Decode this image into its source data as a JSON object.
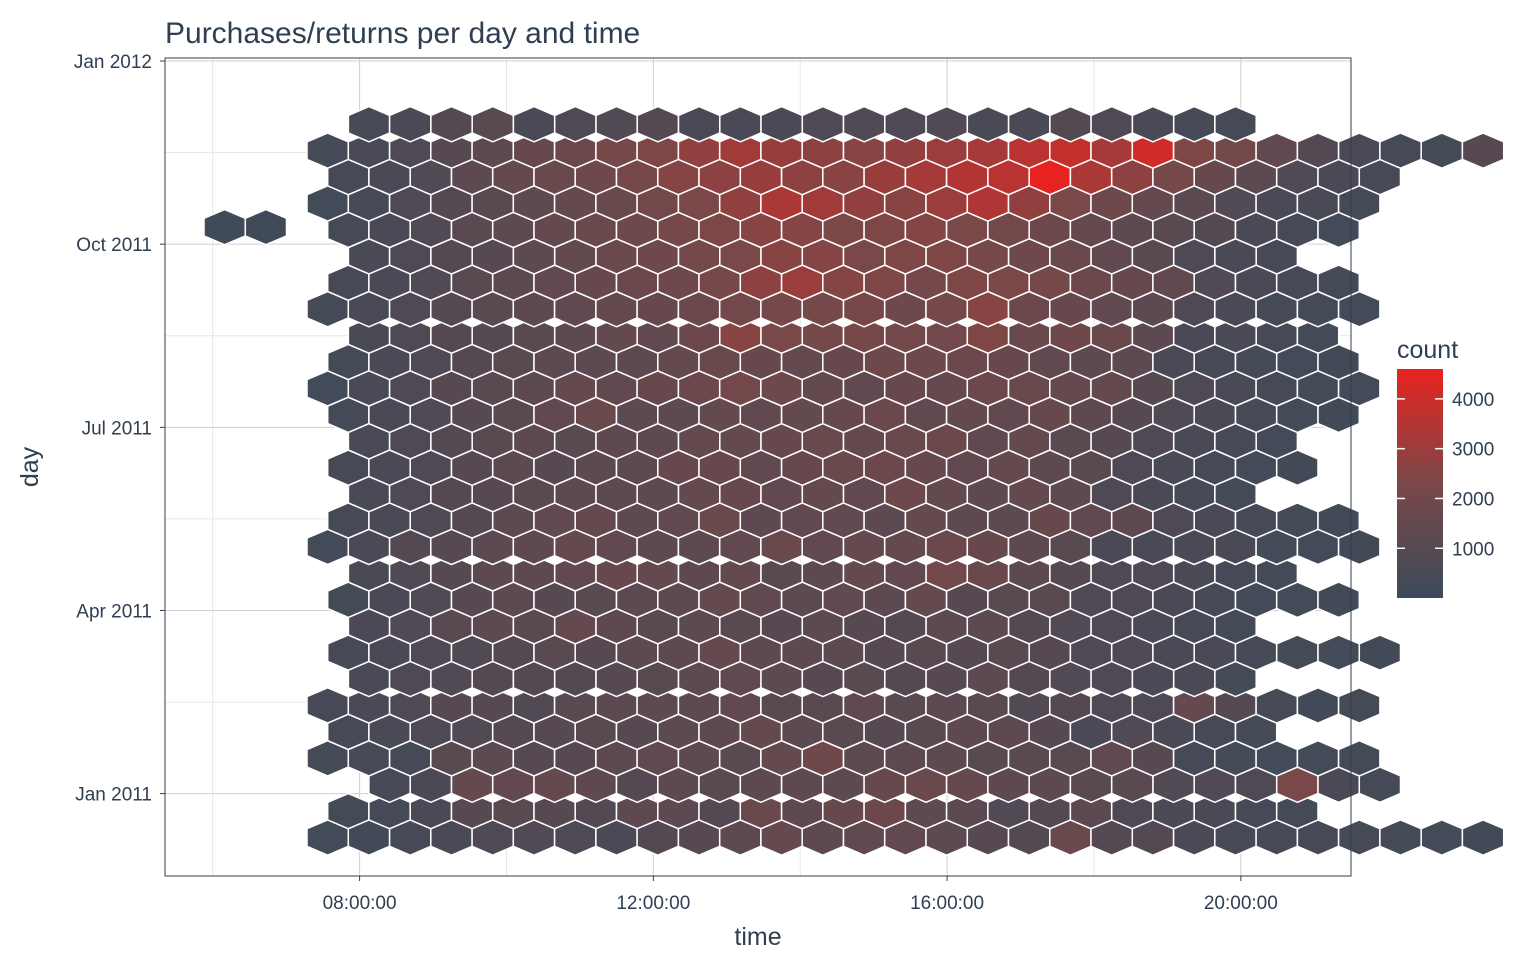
{
  "chart_data": {
    "type": "heatmap",
    "subtype": "hexbin",
    "title": "Purchases/returns per day and time",
    "xlabel": "time",
    "ylabel": "day",
    "x_ticks": [
      {
        "value": 8,
        "label": "08:00:00"
      },
      {
        "value": 12,
        "label": "12:00:00"
      },
      {
        "value": 16,
        "label": "16:00:00"
      },
      {
        "value": 20,
        "label": "20:00:00"
      }
    ],
    "y_ticks": [
      {
        "value": 0,
        "label": "Jan 2011"
      },
      {
        "value": 3,
        "label": "Apr 2011"
      },
      {
        "value": 6,
        "label": "Jul 2011"
      },
      {
        "value": 9,
        "label": "Oct 2011"
      },
      {
        "value": 12,
        "label": "Jan 2012"
      }
    ],
    "xlim": [
      5.35,
      21.5
    ],
    "ylim": [
      -1.35,
      12.05
    ],
    "units": {
      "x": "hour of day",
      "y": "months since Jan 2011"
    },
    "hex": {
      "dx": 0.5619,
      "dy": 0.4328
    },
    "legend": {
      "title": "count",
      "position": "right",
      "ticks": [
        1000,
        2000,
        3000,
        4000
      ],
      "range": [
        1,
        4600
      ],
      "color_low": "#3b4a5a",
      "color_high": "#e8231f"
    },
    "grid": true,
    "rows": [
      {
        "start": 7.565,
        "values": [
          300,
          250,
          400,
          500,
          700,
          800,
          700,
          600,
          900,
          1000,
          1300,
          1500,
          1300,
          1400,
          1400,
          1200,
          1000,
          900,
          1700,
          900,
          900,
          600,
          400,
          400,
          400,
          400,
          350,
          300,
          250
        ]
      },
      {
        "start": 7.846,
        "values": [
          350,
          400,
          600,
          1000,
          1100,
          1000,
          900,
          1300,
          1200,
          900,
          1700,
          1300,
          1600,
          1800,
          1300,
          1200,
          800,
          900,
          1200,
          700,
          600,
          600,
          400,
          350
        ]
      },
      {
        "start": 8.408,
        "values": [
          450,
          600,
          1500,
          1400,
          1500,
          1300,
          900,
          1200,
          1100,
          1200,
          1300,
          1200,
          1600,
          1700,
          1500,
          1300,
          1200,
          1100,
          1100,
          800,
          800,
          700,
          2300,
          600,
          350
        ]
      },
      {
        "start": 7.565,
        "values": [
          350,
          400,
          400,
          1100,
          1200,
          1000,
          1000,
          1300,
          1400,
          1300,
          1100,
          1500,
          1900,
          1300,
          1300,
          1300,
          1100,
          1100,
          1100,
          1400,
          1000,
          400,
          350,
          300,
          300,
          350
        ]
      },
      {
        "start": 7.846,
        "values": [
          400,
          500,
          700,
          800,
          900,
          1000,
          1100,
          1000,
          1200,
          1300,
          1500,
          1200,
          1100,
          1000,
          1100,
          1300,
          1300,
          1000,
          600,
          800,
          500,
          400,
          350
        ]
      },
      {
        "start": 7.565,
        "values": [
          450,
          550,
          700,
          1000,
          1000,
          800,
          1100,
          1200,
          1200,
          1300,
          1400,
          1100,
          1100,
          1400,
          1100,
          1200,
          1100,
          800,
          900,
          700,
          700,
          1500,
          900,
          400,
          250,
          350
        ]
      },
      {
        "start": 8.128,
        "values": [
          500,
          700,
          800,
          900,
          900,
          900,
          1000,
          1100,
          1200,
          1400,
          1200,
          1000,
          1100,
          900,
          1000,
          1200,
          900,
          800,
          700,
          600,
          500,
          350
        ]
      },
      {
        "start": 7.846,
        "values": [
          450,
          500,
          700,
          800,
          900,
          1100,
          1000,
          1200,
          1300,
          1500,
          1300,
          1300,
          1200,
          1000,
          1100,
          1000,
          1100,
          1000,
          700,
          700,
          600,
          500,
          400,
          350,
          300,
          250
        ]
      },
      {
        "start": 8.128,
        "values": [
          600,
          800,
          1100,
          1200,
          1100,
          1500,
          1300,
          1100,
          1200,
          1100,
          1000,
          1200,
          1000,
          900,
          1200,
          1200,
          900,
          800,
          700,
          500,
          400,
          350
        ]
      },
      {
        "start": 7.846,
        "values": [
          350,
          600,
          800,
          1000,
          1200,
          1000,
          1100,
          1200,
          1300,
          1500,
          1400,
          1200,
          1400,
          1200,
          1500,
          1000,
          1100,
          1100,
          800,
          700,
          600,
          400,
          300,
          300,
          250
        ]
      },
      {
        "start": 8.128,
        "values": [
          500,
          800,
          1000,
          1200,
          1300,
          1400,
          1600,
          1500,
          1300,
          1500,
          1100,
          1200,
          1500,
          1400,
          2000,
          1700,
          1200,
          1000,
          700,
          700,
          500,
          400,
          350
        ]
      },
      {
        "start": 7.565,
        "values": [
          300,
          600,
          900,
          1000,
          1200,
          1300,
          1500,
          1400,
          1300,
          1300,
          1400,
          1700,
          1400,
          1500,
          1500,
          1800,
          1600,
          1300,
          1100,
          600,
          500,
          500,
          500,
          300,
          300,
          250
        ]
      },
      {
        "start": 7.846,
        "values": [
          400,
          500,
          700,
          900,
          1200,
          1400,
          1500,
          1300,
          1400,
          1700,
          1300,
          1400,
          1400,
          1200,
          1500,
          1300,
          1200,
          1600,
          1400,
          1300,
          700,
          500,
          400,
          350,
          250
        ]
      },
      {
        "start": 8.128,
        "values": [
          500,
          700,
          900,
          1000,
          1100,
          1200,
          1300,
          1200,
          1500,
          1600,
          1400,
          1500,
          1400,
          1900,
          1500,
          1300,
          1500,
          1200,
          700,
          500,
          400,
          350
        ]
      },
      {
        "start": 7.846,
        "values": [
          400,
          600,
          700,
          1000,
          1200,
          1000,
          1200,
          1200,
          1600,
          1600,
          1400,
          1600,
          1700,
          1800,
          1600,
          1400,
          1500,
          1300,
          1100,
          700,
          500,
          400,
          300,
          250
        ]
      },
      {
        "start": 8.128,
        "values": [
          500,
          700,
          900,
          1100,
          1200,
          1100,
          1300,
          1300,
          1500,
          1500,
          1600,
          1700,
          1500,
          1700,
          1800,
          1400,
          1500,
          1100,
          1000,
          700,
          500,
          400,
          300
        ]
      },
      {
        "start": 7.846,
        "values": [
          350,
          600,
          800,
          1000,
          1100,
          1400,
          1700,
          1200,
          1200,
          1500,
          1400,
          1500,
          1600,
          1700,
          1400,
          1500,
          1400,
          1600,
          1300,
          1000,
          800,
          600,
          400,
          300,
          250
        ]
      },
      {
        "start": 7.565,
        "values": [
          300,
          500,
          700,
          1000,
          1100,
          1200,
          1500,
          1400,
          1600,
          1800,
          2000,
          1900,
          1500,
          1400,
          1600,
          1500,
          1800,
          1700,
          1500,
          1500,
          1000,
          700,
          500,
          400,
          350,
          300
        ]
      },
      {
        "start": 7.846,
        "values": [
          350,
          600,
          700,
          900,
          1100,
          1200,
          1200,
          1300,
          1500,
          1700,
          1600,
          1500,
          1600,
          1900,
          1900,
          1800,
          1600,
          1400,
          1300,
          1200,
          600,
          400,
          350,
          300,
          250
        ]
      },
      {
        "start": 8.128,
        "values": [
          500,
          700,
          900,
          1000,
          1100,
          1200,
          1500,
          1400,
          1800,
          2600,
          2300,
          2100,
          2200,
          2000,
          2000,
          2400,
          1700,
          1900,
          1700,
          1200,
          600,
          500,
          400,
          300
        ]
      },
      {
        "start": 7.565,
        "values": [
          350,
          500,
          700,
          900,
          1100,
          1300,
          1400,
          1500,
          1600,
          1800,
          2000,
          2200,
          2100,
          2200,
          1900,
          2100,
          2600,
          1800,
          1600,
          1400,
          1200,
          700,
          500,
          400,
          350,
          300
        ]
      },
      {
        "start": 7.846,
        "values": [
          450,
          600,
          800,
          1100,
          1200,
          1400,
          1600,
          1800,
          1900,
          2200,
          2700,
          3000,
          2500,
          2400,
          2200,
          2400,
          2300,
          2100,
          1800,
          1600,
          1400,
          800,
          600,
          450,
          350
        ]
      },
      {
        "start": 8.128,
        "values": [
          500,
          700,
          900,
          1000,
          1200,
          1500,
          1700,
          1900,
          2100,
          2300,
          2600,
          2500,
          2300,
          2400,
          2400,
          2200,
          1900,
          1700,
          1400,
          1100,
          700,
          500,
          400
        ]
      },
      {
        "start": 7.846,
        "values": [
          400,
          600,
          800,
          1100,
          1300,
          1500,
          1700,
          1900,
          2100,
          2400,
          2600,
          2500,
          2300,
          2400,
          2500,
          2300,
          2000,
          1800,
          1500,
          1300,
          1100,
          900,
          600,
          400,
          300
        ]
      },
      {
        "start": 7.565,
        "values": [
          300,
          450,
          700,
          900,
          1100,
          1300,
          1500,
          1700,
          2000,
          2300,
          2800,
          3300,
          3100,
          2800,
          2600,
          3000,
          3400,
          2800,
          2300,
          1900,
          1500,
          1200,
          800,
          600,
          500,
          350
        ]
      },
      {
        "start": 7.846,
        "values": [
          450,
          600,
          800,
          1200,
          1500,
          1700,
          1900,
          2200,
          2500,
          2700,
          2900,
          2700,
          2600,
          2900,
          3200,
          3500,
          3600,
          4600,
          3300,
          2700,
          2100,
          1600,
          1200,
          800,
          600,
          400
        ]
      },
      {
        "start": 7.565,
        "values": [
          350,
          500,
          700,
          1000,
          1300,
          1600,
          1800,
          2100,
          2400,
          2800,
          3100,
          2900,
          2700,
          2600,
          2800,
          3000,
          3200,
          3600,
          3800,
          3200,
          4100,
          2400,
          2000,
          1400,
          900,
          600,
          400,
          350,
          1000
        ]
      },
      {
        "start": 8.128,
        "values": [
          450,
          600,
          900,
          1100,
          500,
          700,
          800,
          900,
          600,
          500,
          600,
          700,
          800,
          700,
          800,
          500,
          500,
          900,
          700,
          500,
          400,
          400
        ]
      }
    ],
    "extra_cells": [
      {
        "x": 6.162,
        "y": 9.28,
        "value": 200
      },
      {
        "x": 6.724,
        "y": 9.28,
        "value": 200
      }
    ]
  }
}
